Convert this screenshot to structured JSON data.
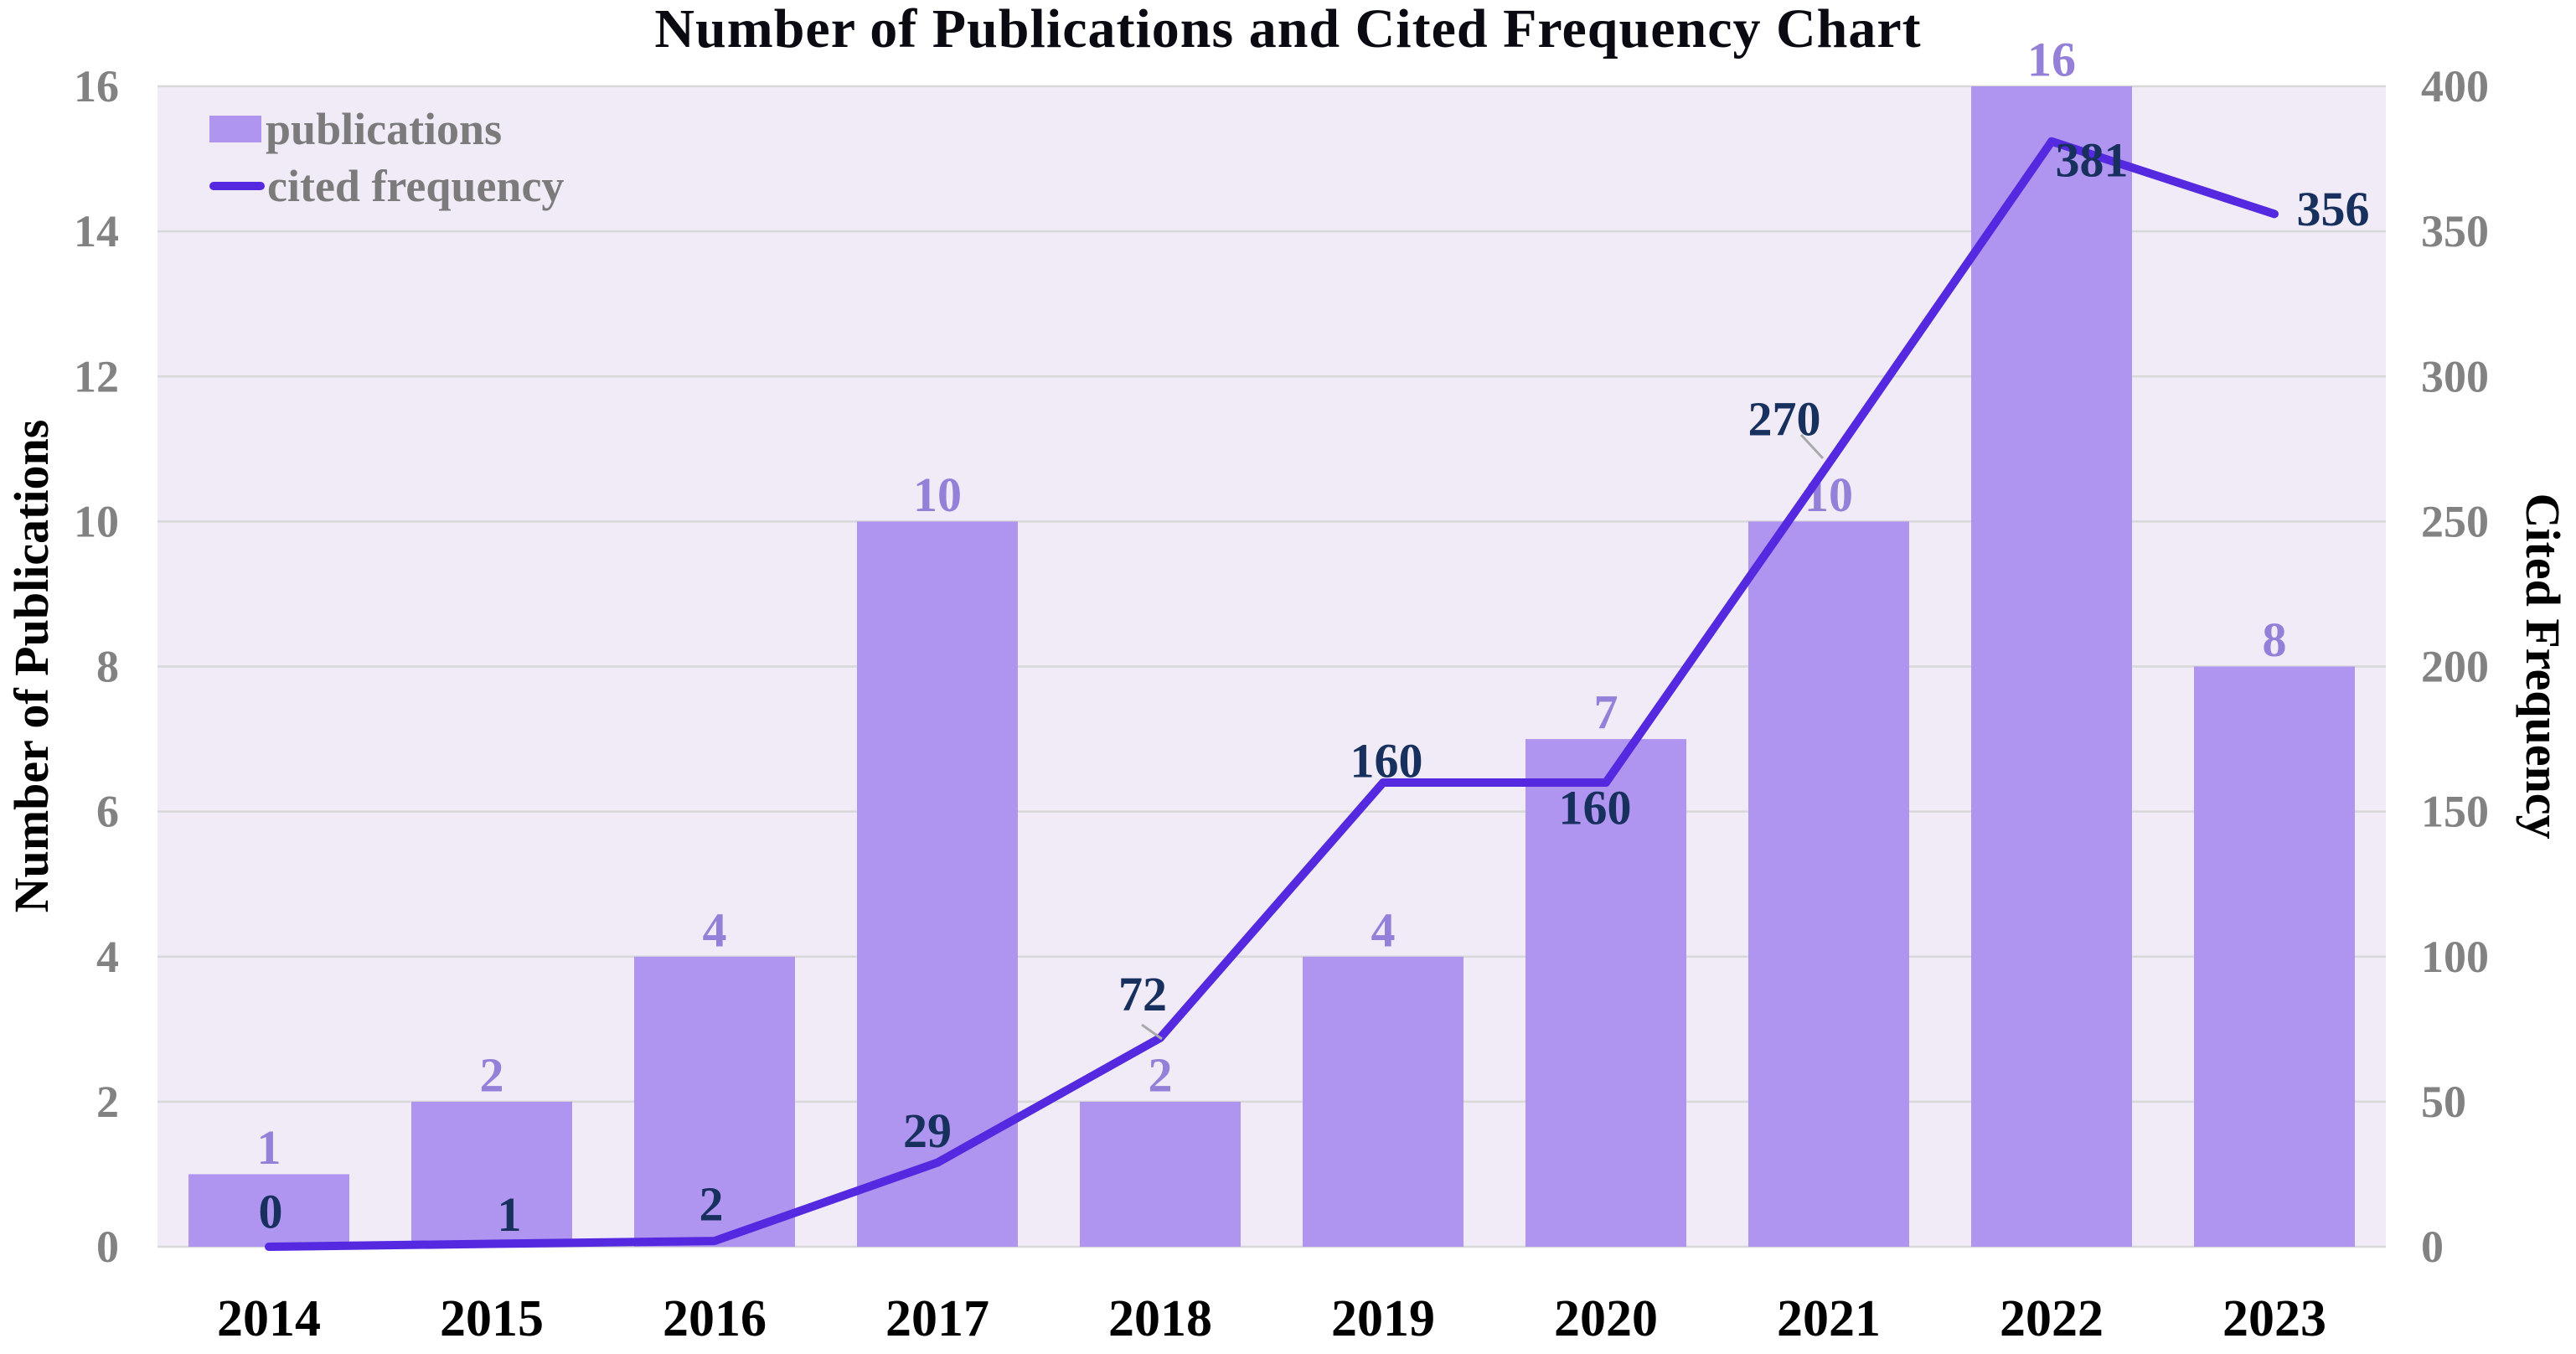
{
  "chart_data": {
    "type": "bar+line",
    "title": "Number of Publications and Cited Frequency Chart",
    "categories": [
      "2014",
      "2015",
      "2016",
      "2017",
      "2018",
      "2019",
      "2020",
      "2021",
      "2022",
      "2023"
    ],
    "series": [
      {
        "name": "publications",
        "type": "bar",
        "axis": "left",
        "values": [
          1,
          2,
          4,
          10,
          2,
          4,
          7,
          10,
          16,
          8
        ],
        "color": "#b095f0",
        "label_color": "#9480d8"
      },
      {
        "name": "cited frequency",
        "type": "line",
        "axis": "right",
        "values": [
          0,
          1,
          2,
          29,
          72,
          160,
          160,
          270,
          381,
          356
        ],
        "color": "#5429e0",
        "label_color": "#17305e"
      }
    ],
    "left_axis": {
      "label": "Number of Publications",
      "min": 0,
      "max": 16,
      "ticks": [
        0,
        2,
        4,
        6,
        8,
        10,
        12,
        14,
        16
      ],
      "tick_color": "#828282"
    },
    "right_axis": {
      "label": "Cited Frequency",
      "min": 0,
      "max": 400,
      "ticks": [
        0,
        50,
        100,
        150,
        200,
        250,
        300,
        350,
        400
      ],
      "tick_color": "#828282"
    },
    "x_axis": {
      "tick_color": "#000000"
    },
    "legend": {
      "position": "top-left",
      "text_color": "#7b7b7b"
    },
    "grid": {
      "show": true,
      "color": "#d8d8d8"
    },
    "plot_background": "#f1ebf8"
  }
}
